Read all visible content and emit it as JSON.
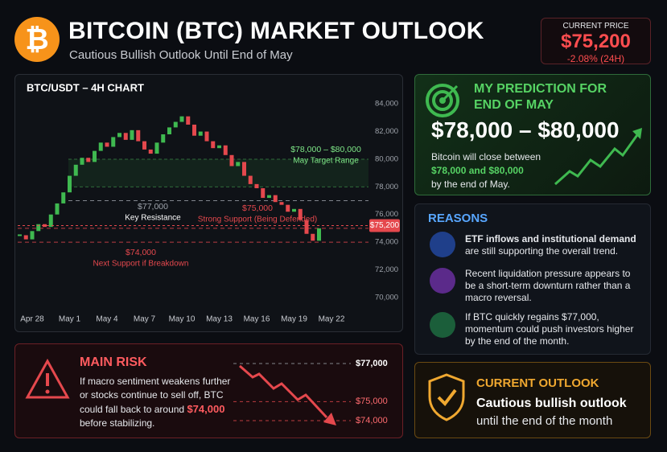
{
  "header": {
    "logo_symbol": "₿",
    "title": "BITCOIN (BTC) MARKET OUTLOOK",
    "subtitle": "Cautious Bullish Outlook Until End of May"
  },
  "current_price": {
    "label": "CURRENT PRICE",
    "price": "$75,200",
    "change": "-2.08% (24H)"
  },
  "chart_data": {
    "type": "candlestick",
    "title": "BTC/USDT – 4H CHART",
    "categories": [
      null,
      null,
      "Apr 28",
      null,
      null,
      null,
      null,
      null,
      "May 1",
      null,
      null,
      null,
      null,
      null,
      "May 4",
      null,
      null,
      null,
      null,
      null,
      "May 7",
      null,
      null,
      null,
      null,
      null,
      "May 10",
      null,
      null,
      null,
      null,
      null,
      "May 13",
      null,
      null,
      null,
      null,
      null,
      "May 16",
      null,
      null,
      null,
      null,
      null,
      "May 19",
      null,
      null,
      null,
      null,
      null,
      "May 22"
    ],
    "values": [
      74500,
      74200,
      74800,
      75300,
      75100,
      76000,
      76800,
      77600,
      78800,
      79600,
      80100,
      79800,
      80600,
      81200,
      80900,
      81600,
      81900,
      81400,
      82100,
      81300,
      80700,
      80400,
      81200,
      81800,
      82300,
      82700,
      83100,
      82500,
      81700,
      82000,
      81300,
      80800,
      81000,
      80300,
      79500,
      79800,
      78800,
      78200,
      77900,
      77200,
      77400,
      76900,
      76700,
      76200,
      76400,
      75600,
      74600,
      74100,
      75000,
      null,
      null
    ],
    "up_color": "#3fb950",
    "down_color": "#e5484d",
    "ylim": [
      69000,
      85000
    ],
    "yticks": [
      {
        "value": 70000,
        "label": "70,000"
      },
      {
        "value": 72000,
        "label": "72,000"
      },
      {
        "value": 74000,
        "label": "74,000"
      },
      {
        "value": 76000,
        "label": "76,000"
      },
      {
        "value": 78000,
        "label": "78,000"
      },
      {
        "value": 80000,
        "label": "80,000"
      },
      {
        "value": 82000,
        "label": "82,000"
      },
      {
        "value": 84000,
        "label": "84,000"
      }
    ],
    "grid": false,
    "annotations": [
      {
        "label": "$78,000 – $80,000",
        "text": "May Target Range",
        "range": [
          78000,
          80000
        ],
        "color": "#7ee787"
      },
      {
        "label": "$77,000",
        "text": "Key Resistance",
        "value": 77000,
        "color": "#9ea3ab"
      },
      {
        "label": "$75,000",
        "text": "Strong Support (Being Defended)",
        "value": 75000,
        "color": "#e5484d"
      },
      {
        "label": "$74,000",
        "text": "Next Support if Breakdown",
        "value": 74000,
        "color": "#e5484d"
      }
    ],
    "current": {
      "label": "$75,200",
      "value": 75200,
      "color": "#e5484d"
    }
  },
  "prediction": {
    "title": "MY PREDICTION FOR END OF MAY",
    "range": "$78,000 – $80,000",
    "text": [
      "Bitcoin will close between",
      "$78,000 and $80,000",
      "by the end of May."
    ]
  },
  "reasons": {
    "title": "REASONS",
    "items": [
      {
        "bold": "ETF inflows and institutional demand",
        "text": "are still supporting the overall trend."
      },
      {
        "text": "Recent liquidation pressure appears to be a short-term downturn rather than a macro reversal."
      },
      {
        "text": "If BTC quickly regains $77,000, momentum could push investors higher by the end of the month."
      }
    ]
  },
  "main_risk": {
    "title": "MAIN RISK",
    "text": [
      "If macro sentiment weakens further or stocks continue to sell off, BTC could fall back to around",
      "$74,000",
      "before stabilizing."
    ],
    "levels": [
      {
        "label": "$77,000",
        "value": 77000
      },
      {
        "label": "$75,000",
        "value": 75000
      },
      {
        "label": "$74,000",
        "value": 74000
      }
    ]
  },
  "outlook": {
    "title": "CURRENT OUTLOOK",
    "line1": "Cautious bullish outlook",
    "line2": "until the end of the month"
  }
}
